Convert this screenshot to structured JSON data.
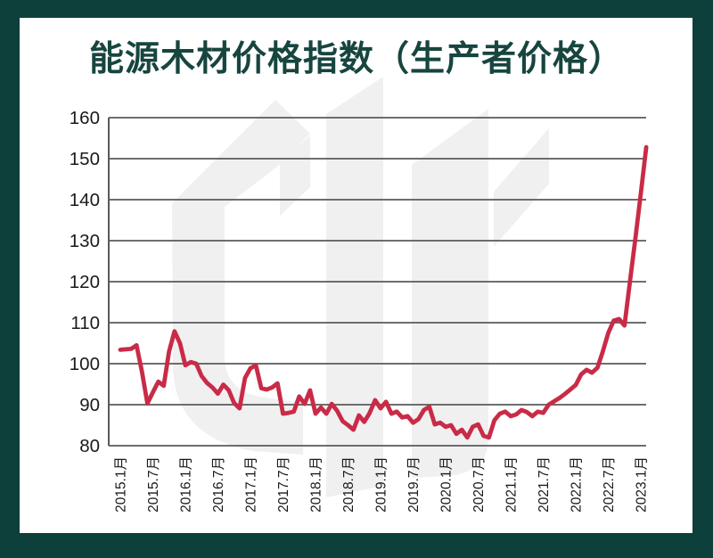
{
  "frame": {
    "border_color": "#0e403b",
    "panel_bg": "#ffffff"
  },
  "header": {
    "title": "能源木材价格指数（生产者价格）",
    "title_color": "#17453f"
  },
  "watermark": {
    "name": "logo-watermark",
    "color": "#f0f0f0"
  },
  "chart_data": {
    "type": "line",
    "title": "能源木材价格指数（生产者价格）",
    "frequency": "monthly",
    "x_start": "2015年1月",
    "x_end": "2023年2月",
    "x_tick_labels": [
      "2015.1月",
      "2015.7月",
      "2016.1月",
      "2016.7月",
      "2017.1月",
      "2017.7月",
      "2018.1月",
      "2018.7月",
      "2019.1月",
      "2019.7月",
      "2020.1月",
      "2020.7月",
      "2021.1月",
      "2021.7月",
      "2022.1月",
      "2022.7月",
      "2023.1月"
    ],
    "x_ticks_every_n_points": 6,
    "y_ticks": [
      160,
      150,
      140,
      130,
      120,
      110,
      100,
      90,
      80
    ],
    "ylim": [
      80,
      160
    ],
    "grid": "horizontal",
    "legend": "none",
    "line_color": "#c92b47",
    "grid_color": "#5a5a5a",
    "axis_label_color": "#1a1a1a",
    "values": [
      103.4,
      103.5,
      103.6,
      104.5,
      98.0,
      90.3,
      93.0,
      95.6,
      94.6,
      103.0,
      107.9,
      105.0,
      99.6,
      100.4,
      100.0,
      97.0,
      95.3,
      94.2,
      92.7,
      94.9,
      93.5,
      90.4,
      89.1,
      96.5,
      98.9,
      99.6,
      94.0,
      93.7,
      94.2,
      95.2,
      87.8,
      88.0,
      88.3,
      92.0,
      90.2,
      93.5,
      87.8,
      89.3,
      87.8,
      90.2,
      88.5,
      86.0,
      85.0,
      83.9,
      87.4,
      85.8,
      88.0,
      91.1,
      89.1,
      90.7,
      87.8,
      88.3,
      86.9,
      87.2,
      85.6,
      86.5,
      88.7,
      89.5,
      85.2,
      85.6,
      84.6,
      85.0,
      82.9,
      83.9,
      82.0,
      84.6,
      85.2,
      82.4,
      82.0,
      86.2,
      87.8,
      88.3,
      87.2,
      87.6,
      88.7,
      88.2,
      87.2,
      88.3,
      88.0,
      90.0,
      90.8,
      91.6,
      92.6,
      93.7,
      94.8,
      97.4,
      98.5,
      97.8,
      99.0,
      103.0,
      107.5,
      110.5,
      110.9,
      109.3,
      120.0,
      130.5,
      141.5,
      152.8
    ]
  }
}
